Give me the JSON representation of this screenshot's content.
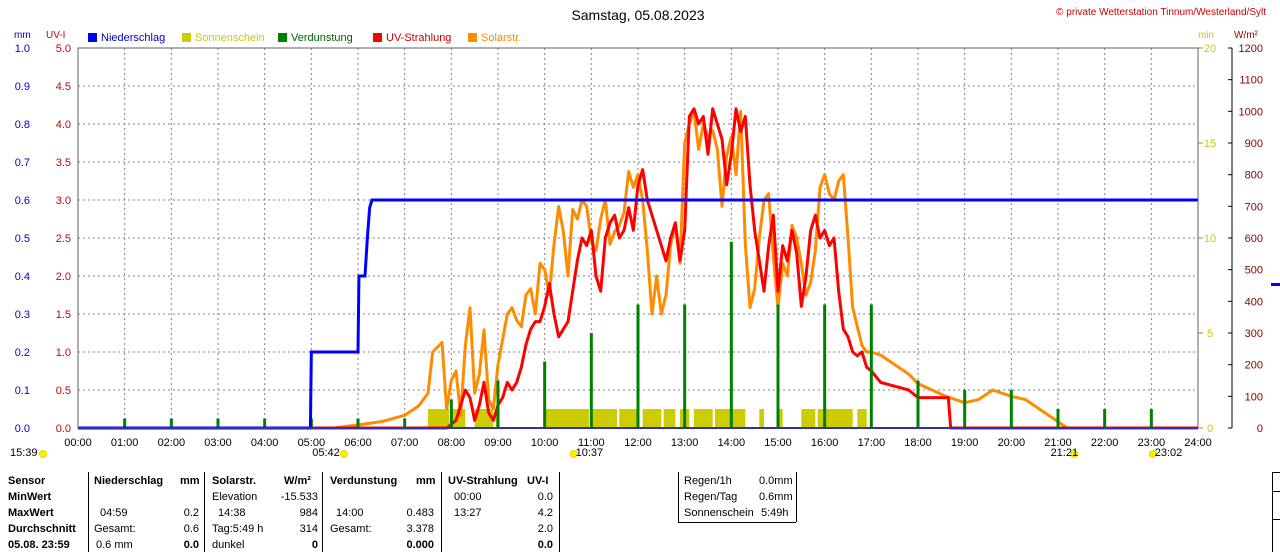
{
  "title": "Samstag, 05.08.2023",
  "copyright": "© private Wetterstation Tinnum/Westerland/Sylt",
  "colors": {
    "precip": "#0000ff",
    "sun": "#cccc00",
    "evap": "#008000",
    "uv": "#ff0000",
    "solar": "#ff8c00",
    "grid": "#808080",
    "axisBrown": "#8b0000"
  },
  "chart_data": {
    "type": "line",
    "title": "Samstag, 05.08.2023",
    "x_ticks": [
      "00:00",
      "01:00",
      "02:00",
      "03:00",
      "04:00",
      "05:00",
      "06:00",
      "07:00",
      "08:00",
      "09:00",
      "10:00",
      "11:00",
      "12:00",
      "13:00",
      "14:00",
      "15:00",
      "16:00",
      "17:00",
      "18:00",
      "19:00",
      "20:00",
      "21:00",
      "22:00",
      "23:00",
      "24:00"
    ],
    "xlim_hours": [
      0,
      24
    ],
    "axes": {
      "mm": {
        "unit": "mm",
        "ylim": [
          0,
          1.0
        ],
        "ticks": [
          "0.0",
          "0.1",
          "0.2",
          "0.3",
          "0.4",
          "0.5",
          "0.6",
          "0.7",
          "0.8",
          "0.9",
          "1.0"
        ]
      },
      "uv": {
        "unit": "UV-I",
        "ylim": [
          0,
          5.0
        ],
        "ticks": [
          "0.0",
          "0.5",
          "1.0",
          "1.5",
          "2.0",
          "2.5",
          "3.0",
          "3.5",
          "4.0",
          "4.5",
          "5.0"
        ]
      },
      "min": {
        "unit": "min",
        "ylim": [
          0,
          20
        ],
        "ticks": [
          "0",
          "5",
          "10",
          "15",
          "20"
        ]
      },
      "wm2": {
        "unit": "W/m²",
        "ylim": [
          0,
          1200
        ],
        "ticks": [
          "0",
          "100",
          "200",
          "300",
          "400",
          "500",
          "600",
          "700",
          "800",
          "900",
          "1000",
          "1100",
          "1200"
        ]
      }
    },
    "legend": [
      "Niederschlag",
      "Sonnenschein",
      "Verdunstung",
      "UV-Strahlung",
      "Solarstr."
    ],
    "legend_position": "top",
    "grid": true,
    "sun_markers": [
      {
        "label": "15:39",
        "hour": 0.0
      },
      {
        "label": "05:42",
        "hour": 5.7
      },
      {
        "label": "10:37",
        "hour": 10.62
      },
      {
        "label": "21:21",
        "hour": 21.35
      },
      {
        "label": "23:02",
        "hour": 23.03
      }
    ],
    "series": [
      {
        "name": "Niederschlag",
        "axis": "mm",
        "x": [
          0,
          4.98,
          4.99,
          5.0,
          6.0,
          6.02,
          6.15,
          6.2,
          6.25,
          6.3,
          24
        ],
        "y": [
          0,
          0,
          0.1,
          0.2,
          0.2,
          0.4,
          0.4,
          0.5,
          0.58,
          0.6,
          0.6
        ]
      },
      {
        "name": "Solarstr.",
        "axis": "wm2",
        "x": [
          0,
          5.5,
          6.0,
          6.5,
          7.0,
          7.3,
          7.5,
          7.6,
          7.8,
          7.9,
          8.0,
          8.1,
          8.2,
          8.3,
          8.4,
          8.5,
          8.6,
          8.7,
          8.8,
          8.9,
          9.0,
          9.1,
          9.2,
          9.3,
          9.4,
          9.5,
          9.6,
          9.7,
          9.8,
          9.9,
          10.0,
          10.1,
          10.2,
          10.3,
          10.4,
          10.5,
          10.6,
          10.7,
          10.8,
          10.9,
          11.0,
          11.1,
          11.2,
          11.3,
          11.4,
          11.5,
          11.6,
          11.7,
          11.8,
          11.9,
          12.0,
          12.1,
          12.2,
          12.3,
          12.4,
          12.5,
          12.6,
          12.7,
          12.8,
          12.9,
          13.0,
          13.1,
          13.2,
          13.3,
          13.4,
          13.5,
          13.6,
          13.7,
          13.8,
          13.9,
          14.0,
          14.1,
          14.2,
          14.3,
          14.4,
          14.5,
          14.6,
          14.7,
          14.8,
          14.9,
          15.0,
          15.1,
          15.2,
          15.3,
          15.4,
          15.5,
          15.6,
          15.7,
          15.8,
          15.9,
          16.0,
          16.1,
          16.2,
          16.3,
          16.4,
          16.5,
          16.6,
          16.7,
          16.8,
          16.9,
          17.0,
          17.2,
          17.5,
          17.8,
          18.0,
          18.3,
          18.6,
          19.0,
          19.3,
          19.6,
          20.0,
          20.3,
          20.6,
          21.0,
          21.2
        ],
        "y": [
          0,
          0,
          10,
          20,
          40,
          70,
          110,
          240,
          270,
          60,
          150,
          180,
          40,
          260,
          380,
          110,
          170,
          310,
          90,
          60,
          200,
          280,
          360,
          380,
          340,
          320,
          420,
          440,
          360,
          520,
          500,
          420,
          580,
          700,
          620,
          480,
          690,
          660,
          720,
          700,
          590,
          560,
          660,
          720,
          580,
          620,
          640,
          680,
          810,
          760,
          800,
          720,
          560,
          360,
          480,
          360,
          420,
          580,
          640,
          520,
          900,
          960,
          1000,
          880,
          960,
          920,
          940,
          880,
          700,
          860,
          920,
          800,
          1000,
          580,
          380,
          440,
          600,
          720,
          740,
          540,
          380,
          520,
          480,
          640,
          600,
          520,
          420,
          460,
          560,
          760,
          800,
          740,
          720,
          780,
          800,
          600,
          380,
          320,
          260,
          240,
          240,
          230,
          200,
          170,
          140,
          120,
          100,
          80,
          90,
          120,
          100,
          90,
          60,
          20,
          0
        ]
      },
      {
        "name": "UV-Strahlung",
        "axis": "uv",
        "x": [
          0,
          7.6,
          7.9,
          8.1,
          8.3,
          8.4,
          8.5,
          8.6,
          8.7,
          8.8,
          8.9,
          9.0,
          9.1,
          9.2,
          9.3,
          9.4,
          9.5,
          9.6,
          9.7,
          9.8,
          9.9,
          10.0,
          10.1,
          10.2,
          10.3,
          10.4,
          10.5,
          10.6,
          10.7,
          10.8,
          10.9,
          11.0,
          11.1,
          11.2,
          11.3,
          11.4,
          11.5,
          11.6,
          11.7,
          11.8,
          11.9,
          12.0,
          12.1,
          12.2,
          12.3,
          12.4,
          12.5,
          12.6,
          12.7,
          12.8,
          12.9,
          13.0,
          13.1,
          13.2,
          13.3,
          13.4,
          13.5,
          13.6,
          13.7,
          13.8,
          13.9,
          14.0,
          14.1,
          14.2,
          14.3,
          14.4,
          14.5,
          14.6,
          14.7,
          14.8,
          14.9,
          15.0,
          15.1,
          15.2,
          15.3,
          15.4,
          15.5,
          15.6,
          15.7,
          15.8,
          15.9,
          16.0,
          16.1,
          16.2,
          16.3,
          16.4,
          16.5,
          16.6,
          16.7,
          16.8,
          16.9,
          17.0,
          17.2,
          17.5,
          17.8,
          18.0,
          18.3,
          18.6,
          18.65,
          18.7,
          24
        ],
        "y": [
          0,
          0,
          0,
          0.1,
          0.5,
          0.4,
          0.1,
          0.3,
          0.6,
          0.2,
          0.1,
          0.3,
          0.4,
          0.6,
          0.5,
          0.6,
          0.8,
          1.1,
          1.3,
          1.4,
          1.4,
          1.6,
          1.9,
          1.5,
          1.2,
          1.3,
          1.4,
          1.8,
          2.2,
          2.5,
          2.4,
          2.6,
          2.0,
          1.8,
          2.5,
          2.7,
          2.8,
          2.5,
          2.6,
          2.9,
          2.6,
          3.2,
          3.4,
          3.0,
          2.8,
          2.6,
          2.4,
          2.2,
          2.5,
          2.7,
          2.2,
          2.6,
          4.1,
          4.2,
          4.0,
          4.1,
          3.6,
          4.2,
          4.0,
          3.8,
          3.2,
          3.6,
          4.2,
          3.9,
          4.1,
          3.2,
          2.6,
          2.2,
          1.8,
          2.4,
          2.8,
          1.8,
          2.4,
          2.2,
          2.6,
          2.3,
          1.6,
          2.0,
          2.6,
          2.8,
          2.5,
          2.6,
          2.4,
          2.5,
          1.8,
          1.3,
          1.2,
          1.0,
          0.95,
          1.0,
          0.8,
          0.75,
          0.6,
          0.55,
          0.5,
          0.4,
          0.4,
          0.4,
          0.4,
          0.0,
          0.0
        ]
      },
      {
        "name": "Verdunstung",
        "axis": "min",
        "x": [
          1,
          2,
          3,
          4,
          5,
          6,
          7,
          8,
          9,
          10,
          11,
          12,
          13,
          14,
          15,
          16,
          17,
          18,
          19,
          20,
          21,
          22,
          23
        ],
        "y": [
          0.5,
          0.5,
          0.5,
          0.5,
          0.5,
          0.5,
          0.5,
          1.5,
          2.5,
          3.5,
          5.0,
          6.5,
          6.5,
          9.8,
          6.5,
          6.5,
          6.5,
          2.5,
          2.0,
          2.0,
          1.0,
          1.0,
          1.0
        ]
      },
      {
        "name": "Sonnenschein",
        "axis": "min",
        "x_ranges": [
          [
            7.5,
            7.95
          ],
          [
            8.0,
            8.3
          ],
          [
            8.5,
            8.9
          ],
          [
            8.95,
            9.0
          ],
          [
            10.0,
            10.95
          ],
          [
            11.0,
            11.55
          ],
          [
            11.6,
            12.0
          ],
          [
            12.1,
            12.5
          ],
          [
            12.55,
            12.8
          ],
          [
            12.9,
            13.1
          ],
          [
            13.2,
            13.6
          ],
          [
            13.65,
            14.3
          ],
          [
            14.6,
            14.7
          ],
          [
            15.0,
            15.1
          ],
          [
            15.5,
            15.8
          ],
          [
            15.85,
            16.6
          ],
          [
            16.7,
            16.9
          ]
        ],
        "y": 1.0
      }
    ]
  },
  "stats": {
    "headers": {
      "sensor": "Sensor",
      "precip": "Niederschlag",
      "precip_unit": "mm",
      "solar": "Solarstr.",
      "solar_unit": "W/m²",
      "evap": "Verdunstung",
      "evap_unit": "mm",
      "uv": "UV-Strahlung",
      "uv_unit": "UV-I"
    },
    "rows": {
      "min": {
        "label": "MinWert",
        "solar_time": "Elevation",
        "solar_val": "-15.533",
        "uv_time": "00:00",
        "uv_val": "0.0"
      },
      "max": {
        "label": "MaxWert",
        "precip_time": "04:59",
        "precip_val": "0.2",
        "solar_time": "14:38",
        "solar_val": "984",
        "evap_time": "14:00",
        "evap_val": "0.483",
        "uv_time": "13:27",
        "uv_val": "4.2"
      },
      "avg": {
        "label": "Durchschnitt",
        "precip_time": "Gesamt:",
        "precip_val": "0.6",
        "solar_time": "Tag:5:49 h",
        "solar_val": "314",
        "evap_time": "Gesamt:",
        "evap_val": "3.378",
        "uv_val": "2.0"
      },
      "cur": {
        "label": "05.08. 23:59",
        "precip_time": "0.6 mm",
        "precip_val": "0.0",
        "solar_time": "dunkel",
        "solar_val": "0",
        "evap_val": "0.000",
        "uv_val": "0.0"
      }
    },
    "summary": [
      {
        "label": "Regen/1h",
        "value": "0.0mm"
      },
      {
        "label": "Regen/Tag",
        "value": "0.6mm"
      },
      {
        "label": "Sonnenschein",
        "value": "5:49h"
      }
    ]
  }
}
